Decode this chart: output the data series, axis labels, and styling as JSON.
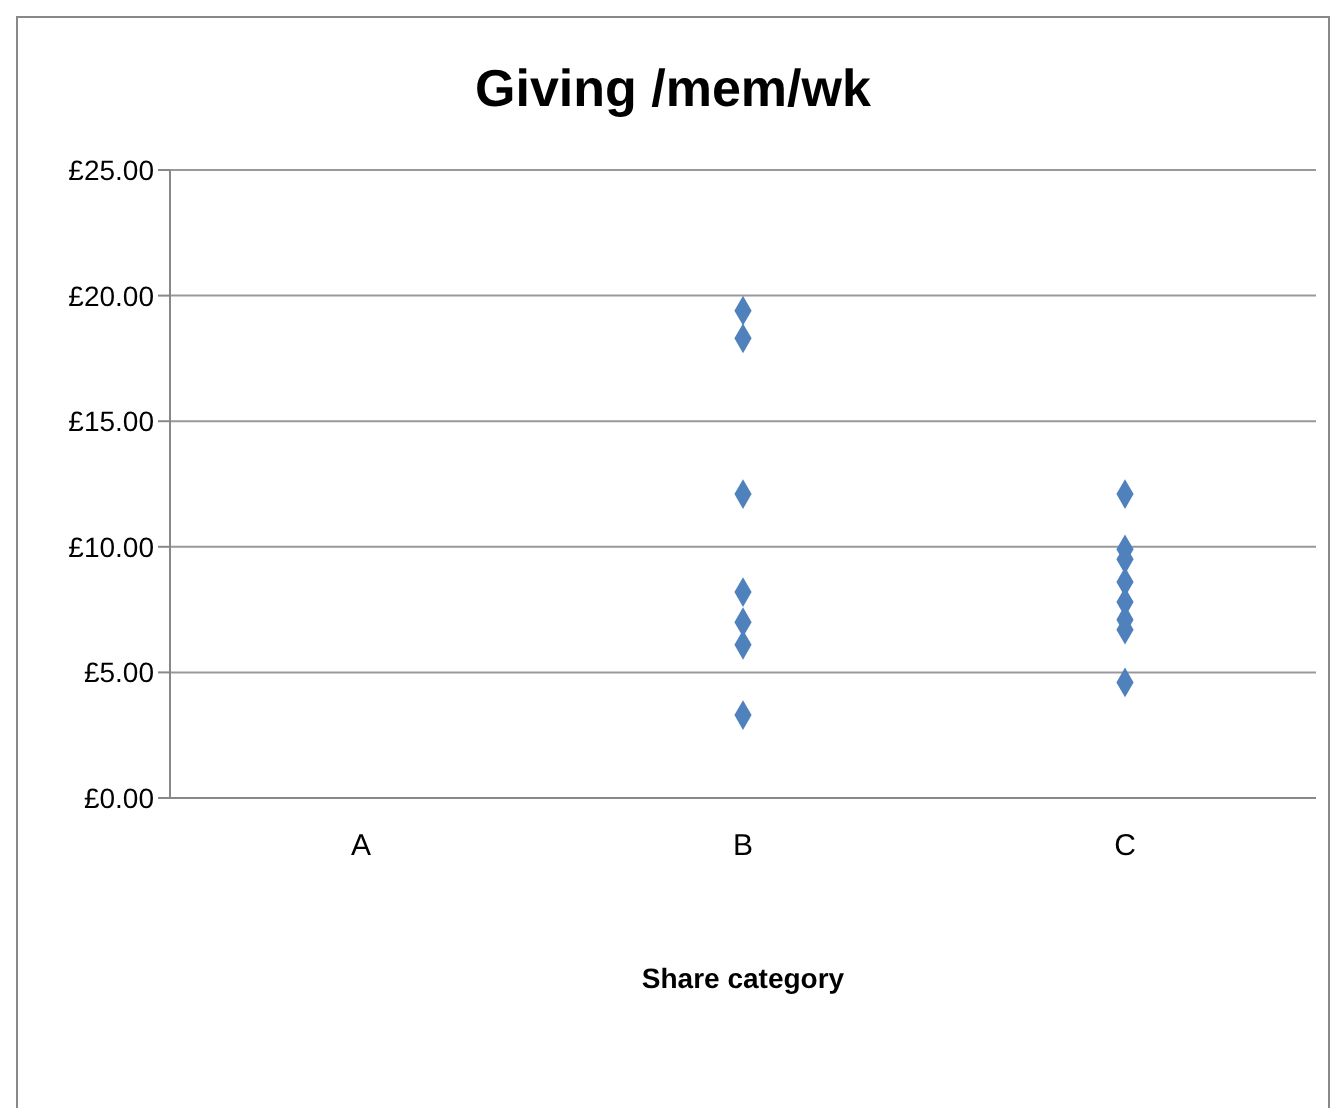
{
  "chart_data": {
    "type": "scatter",
    "title": "Giving /mem/wk",
    "xlabel": "Share category",
    "categories": [
      "A",
      "B",
      "C"
    ],
    "series": [
      {
        "color": "#4f81bd",
        "x": [
          "B",
          "B",
          "B",
          "B",
          "B",
          "B",
          "B",
          "C",
          "C",
          "C",
          "C",
          "C",
          "C",
          "C",
          "C"
        ],
        "values": [
          19.4,
          18.3,
          12.1,
          8.2,
          7.0,
          6.1,
          3.3,
          12.1,
          9.9,
          9.5,
          8.6,
          7.8,
          7.1,
          6.7,
          4.6
        ]
      }
    ],
    "ylim": [
      0,
      25
    ],
    "yticks": [
      {
        "value": 0,
        "label": "£0.00"
      },
      {
        "value": 5,
        "label": "£5.00"
      },
      {
        "value": 10,
        "label": "£10.00"
      },
      {
        "value": 15,
        "label": "£15.00"
      },
      {
        "value": 20,
        "label": "£20.00"
      },
      {
        "value": 25,
        "label": "£25.00"
      }
    ],
    "grid": "y",
    "marker": "diamond",
    "legend": false
  }
}
